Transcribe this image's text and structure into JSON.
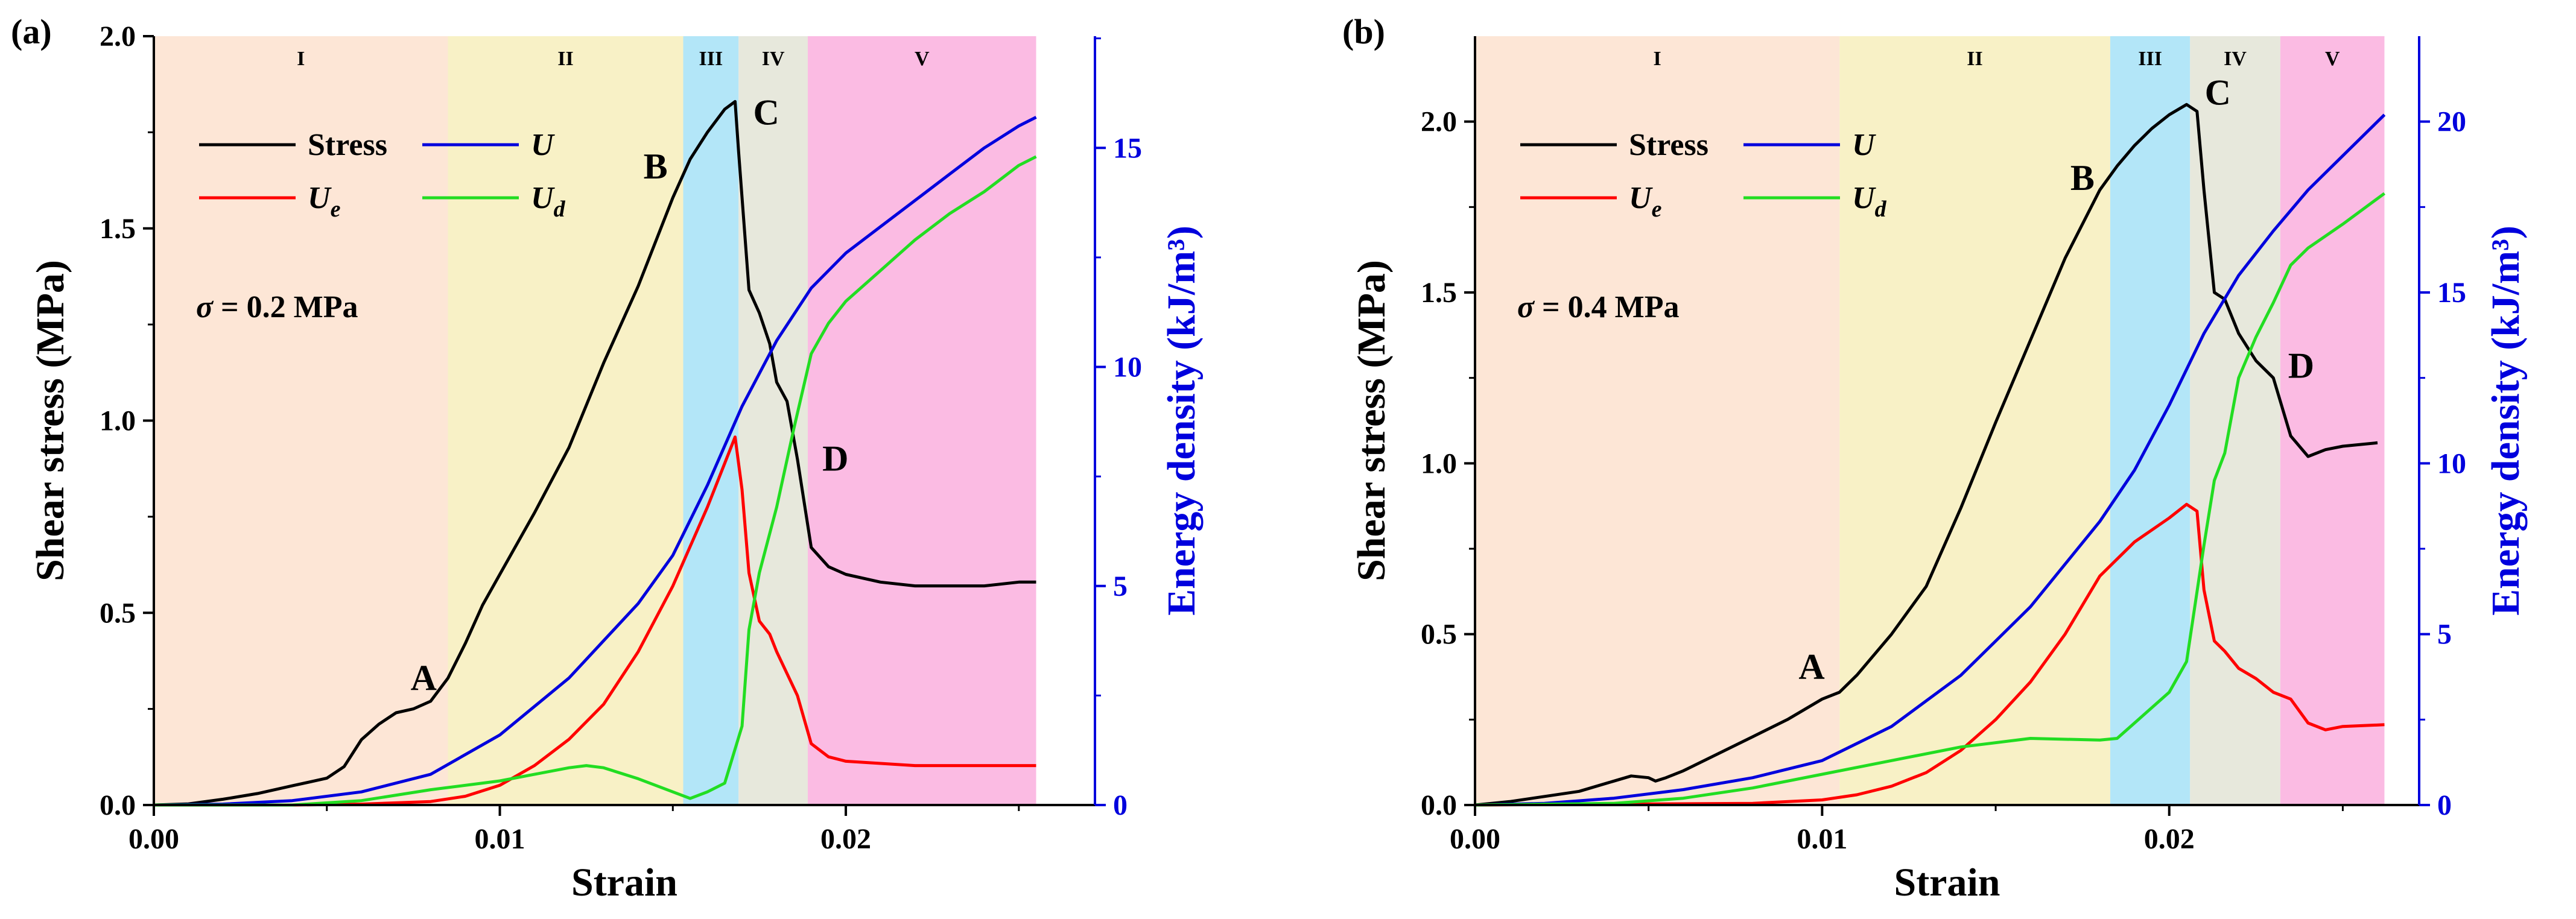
{
  "colors": {
    "stress": "#000000",
    "U": "#0000dd",
    "Ue": "#ff0000",
    "Ud": "#22dd22",
    "right_axis": "#0000dd",
    "stage_I": "#fde6d6",
    "stage_II": "#f8f1c6",
    "stage_III": "#b3e6f8",
    "stage_IV": "#e7e8dc",
    "stage_V": "#fbbbe3"
  },
  "chart_data": [
    {
      "type": "line",
      "panel_label": "(a)",
      "xlabel": "Strain",
      "ylabel": "Shear stress (MPa)",
      "ylabel_right": "Energy density (kJ/m³)",
      "xlim": [
        0,
        0.0272
      ],
      "ylim": [
        0,
        2.0
      ],
      "ylim_right": [
        0,
        17.55
      ],
      "x_ticks": [
        {
          "v": 0,
          "label": "0.00"
        },
        {
          "v": 0.01,
          "label": "0.01"
        },
        {
          "v": 0.02,
          "label": "0.02"
        }
      ],
      "y_ticks": [
        {
          "v": 0,
          "label": "0.0"
        },
        {
          "v": 0.5,
          "label": "0.5"
        },
        {
          "v": 1.0,
          "label": "1.0"
        },
        {
          "v": 1.5,
          "label": "1.5"
        },
        {
          "v": 2.0,
          "label": "2.0"
        }
      ],
      "y_ticks_right": [
        {
          "v": 0,
          "label": "0"
        },
        {
          "v": 5,
          "label": "5"
        },
        {
          "v": 10,
          "label": "10"
        },
        {
          "v": 15,
          "label": "15"
        }
      ],
      "condition": {
        "prefix": "σ",
        "text": "= 0.2 MPa"
      },
      "stages": [
        {
          "label": "I",
          "x0": 0,
          "x1": 0.0085,
          "color": "#fde6d6"
        },
        {
          "label": "II",
          "x0": 0.0085,
          "x1": 0.0153,
          "color": "#f8f1c6"
        },
        {
          "label": "III",
          "x0": 0.0153,
          "x1": 0.0169,
          "color": "#b3e6f8"
        },
        {
          "label": "IV",
          "x0": 0.0169,
          "x1": 0.0189,
          "color": "#e7e8dc"
        },
        {
          "label": "V",
          "x0": 0.0189,
          "x1": 0.0255,
          "color": "#fbbbe3"
        }
      ],
      "legend": [
        {
          "key": "stress",
          "label": "Stress",
          "sub": ""
        },
        {
          "key": "U",
          "label": "U",
          "sub": ""
        },
        {
          "key": "Ue",
          "label": "U",
          "sub": "e"
        },
        {
          "key": "Ud",
          "label": "U",
          "sub": "d"
        }
      ],
      "annotations": [
        {
          "text": "A",
          "x": 0.0078,
          "y": 0.3
        },
        {
          "text": "B",
          "x": 0.0145,
          "y": 1.63
        },
        {
          "text": "C",
          "x": 0.0177,
          "y": 1.77
        },
        {
          "text": "D",
          "x": 0.0197,
          "y": 0.87
        }
      ],
      "series": [
        {
          "name": "Stress",
          "key": "stress",
          "axis": "left",
          "x": [
            0,
            0.001,
            0.002,
            0.003,
            0.004,
            0.005,
            0.0055,
            0.006,
            0.0065,
            0.007,
            0.0075,
            0.008,
            0.0085,
            0.009,
            0.0095,
            0.01,
            0.011,
            0.012,
            0.013,
            0.014,
            0.015,
            0.0155,
            0.016,
            0.0165,
            0.0168,
            0.0169,
            0.0172,
            0.0175,
            0.0178,
            0.018,
            0.0183,
            0.0186,
            0.019,
            0.0195,
            0.02,
            0.021,
            0.022,
            0.023,
            0.024,
            0.025,
            0.0255
          ],
          "values": [
            0,
            0.003,
            0.015,
            0.03,
            0.05,
            0.07,
            0.1,
            0.17,
            0.21,
            0.24,
            0.25,
            0.27,
            0.33,
            0.42,
            0.52,
            0.6,
            0.76,
            0.93,
            1.15,
            1.35,
            1.58,
            1.68,
            1.75,
            1.81,
            1.83,
            1.7,
            1.34,
            1.28,
            1.2,
            1.1,
            1.05,
            0.9,
            0.67,
            0.62,
            0.6,
            0.58,
            0.57,
            0.57,
            0.57,
            0.58,
            0.58
          ]
        },
        {
          "name": "U",
          "key": "U",
          "axis": "right",
          "x": [
            0,
            0.002,
            0.004,
            0.006,
            0.008,
            0.01,
            0.012,
            0.014,
            0.015,
            0.016,
            0.017,
            0.018,
            0.019,
            0.02,
            0.021,
            0.022,
            0.023,
            0.024,
            0.025,
            0.0255
          ],
          "values": [
            0,
            0.02,
            0.1,
            0.3,
            0.7,
            1.6,
            2.9,
            4.6,
            5.7,
            7.3,
            9.1,
            10.6,
            11.8,
            12.6,
            13.2,
            13.8,
            14.4,
            15.0,
            15.5,
            15.7
          ]
        },
        {
          "name": "Ue",
          "key": "Ue",
          "axis": "right",
          "x": [
            0,
            0.004,
            0.006,
            0.008,
            0.009,
            0.01,
            0.011,
            0.012,
            0.013,
            0.014,
            0.015,
            0.016,
            0.0165,
            0.0168,
            0.017,
            0.0172,
            0.0175,
            0.0178,
            0.018,
            0.0183,
            0.0186,
            0.019,
            0.0195,
            0.02,
            0.022,
            0.024,
            0.0255
          ],
          "values": [
            0,
            0,
            0.02,
            0.08,
            0.2,
            0.45,
            0.9,
            1.5,
            2.3,
            3.5,
            5.0,
            6.8,
            7.8,
            8.4,
            7.2,
            5.3,
            4.2,
            3.9,
            3.5,
            3.0,
            2.5,
            1.4,
            1.1,
            1.0,
            0.9,
            0.9,
            0.9
          ]
        },
        {
          "name": "Ud",
          "key": "Ud",
          "axis": "right",
          "x": [
            0,
            0.004,
            0.006,
            0.008,
            0.01,
            0.011,
            0.012,
            0.0125,
            0.013,
            0.014,
            0.015,
            0.0155,
            0.016,
            0.0165,
            0.017,
            0.0172,
            0.0175,
            0.018,
            0.0185,
            0.019,
            0.0195,
            0.02,
            0.021,
            0.022,
            0.023,
            0.024,
            0.025,
            0.0255
          ],
          "values": [
            0,
            0,
            0.1,
            0.35,
            0.55,
            0.7,
            0.85,
            0.9,
            0.85,
            0.6,
            0.3,
            0.15,
            0.3,
            0.5,
            1.8,
            4.0,
            5.3,
            6.8,
            8.6,
            10.3,
            11.0,
            11.5,
            12.2,
            12.9,
            13.5,
            14.0,
            14.6,
            14.8
          ]
        }
      ]
    },
    {
      "type": "line",
      "panel_label": "(b)",
      "xlabel": "Strain",
      "ylabel": "Shear stress (MPa)",
      "ylabel_right": "Energy density (kJ/m³)",
      "xlim": [
        0,
        0.0272
      ],
      "ylim": [
        0,
        2.25
      ],
      "ylim_right": [
        0,
        22.5
      ],
      "x_ticks": [
        {
          "v": 0,
          "label": "0.00"
        },
        {
          "v": 0.01,
          "label": "0.01"
        },
        {
          "v": 0.02,
          "label": "0.02"
        }
      ],
      "y_ticks": [
        {
          "v": 0,
          "label": "0.0"
        },
        {
          "v": 0.5,
          "label": "0.5"
        },
        {
          "v": 1.0,
          "label": "1.0"
        },
        {
          "v": 1.5,
          "label": "1.5"
        },
        {
          "v": 2.0,
          "label": "2.0"
        }
      ],
      "y_ticks_right": [
        {
          "v": 0,
          "label": "0"
        },
        {
          "v": 5,
          "label": "5"
        },
        {
          "v": 10,
          "label": "10"
        },
        {
          "v": 15,
          "label": "15"
        },
        {
          "v": 20,
          "label": "20"
        }
      ],
      "condition": {
        "prefix": "σ",
        "text": "= 0.4 MPa"
      },
      "stages": [
        {
          "label": "I",
          "x0": 0,
          "x1": 0.0105,
          "color": "#fde6d6"
        },
        {
          "label": "II",
          "x0": 0.0105,
          "x1": 0.0183,
          "color": "#f8f1c6"
        },
        {
          "label": "III",
          "x0": 0.0183,
          "x1": 0.0206,
          "color": "#b3e6f8"
        },
        {
          "label": "IV",
          "x0": 0.0206,
          "x1": 0.0232,
          "color": "#e7e8dc"
        },
        {
          "label": "V",
          "x0": 0.0232,
          "x1": 0.0262,
          "color": "#fbbbe3"
        }
      ],
      "legend": [
        {
          "key": "stress",
          "label": "Stress",
          "sub": ""
        },
        {
          "key": "U",
          "label": "U",
          "sub": ""
        },
        {
          "key": "Ue",
          "label": "U",
          "sub": "e"
        },
        {
          "key": "Ud",
          "label": "U",
          "sub": "d"
        }
      ],
      "annotations": [
        {
          "text": "A",
          "x": 0.0097,
          "y": 0.37
        },
        {
          "text": "B",
          "x": 0.0175,
          "y": 1.8
        },
        {
          "text": "C",
          "x": 0.0214,
          "y": 2.05
        },
        {
          "text": "D",
          "x": 0.0238,
          "y": 1.25
        }
      ],
      "series": [
        {
          "name": "Stress",
          "key": "stress",
          "axis": "left",
          "x": [
            0,
            0.001,
            0.002,
            0.003,
            0.004,
            0.0045,
            0.005,
            0.0052,
            0.0055,
            0.006,
            0.007,
            0.008,
            0.009,
            0.01,
            0.0105,
            0.011,
            0.012,
            0.013,
            0.014,
            0.015,
            0.016,
            0.017,
            0.018,
            0.0185,
            0.019,
            0.0195,
            0.02,
            0.0205,
            0.0208,
            0.021,
            0.0213,
            0.0216,
            0.022,
            0.0225,
            0.023,
            0.0235,
            0.024,
            0.0245,
            0.025,
            0.026
          ],
          "values": [
            0,
            0.01,
            0.025,
            0.04,
            0.07,
            0.085,
            0.08,
            0.07,
            0.08,
            0.1,
            0.15,
            0.2,
            0.25,
            0.31,
            0.33,
            0.38,
            0.5,
            0.64,
            0.87,
            1.12,
            1.36,
            1.6,
            1.8,
            1.87,
            1.93,
            1.98,
            2.02,
            2.05,
            2.03,
            1.8,
            1.5,
            1.48,
            1.38,
            1.3,
            1.25,
            1.08,
            1.02,
            1.04,
            1.05,
            1.06
          ]
        },
        {
          "name": "U",
          "key": "U",
          "axis": "right",
          "x": [
            0,
            0.002,
            0.004,
            0.006,
            0.008,
            0.01,
            0.012,
            0.014,
            0.016,
            0.018,
            0.019,
            0.02,
            0.021,
            0.022,
            0.023,
            0.024,
            0.025,
            0.0262
          ],
          "values": [
            0,
            0.05,
            0.2,
            0.45,
            0.8,
            1.3,
            2.3,
            3.8,
            5.8,
            8.3,
            9.8,
            11.7,
            13.8,
            15.5,
            16.8,
            18.0,
            19.0,
            20.2
          ]
        },
        {
          "name": "Ue",
          "key": "Ue",
          "axis": "right",
          "x": [
            0,
            0.008,
            0.01,
            0.011,
            0.012,
            0.013,
            0.014,
            0.015,
            0.016,
            0.017,
            0.018,
            0.019,
            0.02,
            0.0205,
            0.0208,
            0.021,
            0.0213,
            0.0216,
            0.022,
            0.0225,
            0.023,
            0.0235,
            0.024,
            0.0245,
            0.025,
            0.0262
          ],
          "values": [
            0,
            0.05,
            0.15,
            0.3,
            0.55,
            0.95,
            1.6,
            2.5,
            3.6,
            5.0,
            6.7,
            7.7,
            8.4,
            8.8,
            8.6,
            6.3,
            4.8,
            4.5,
            4.0,
            3.7,
            3.3,
            3.1,
            2.4,
            2.2,
            2.3,
            2.35
          ]
        },
        {
          "name": "Ud",
          "key": "Ud",
          "axis": "right",
          "x": [
            0,
            0.004,
            0.006,
            0.008,
            0.01,
            0.012,
            0.014,
            0.016,
            0.018,
            0.0185,
            0.019,
            0.02,
            0.0205,
            0.021,
            0.0213,
            0.0216,
            0.022,
            0.0225,
            0.023,
            0.0235,
            0.024,
            0.025,
            0.0262
          ],
          "values": [
            0,
            0.05,
            0.2,
            0.5,
            0.9,
            1.3,
            1.7,
            1.95,
            1.9,
            1.95,
            2.4,
            3.3,
            4.2,
            7.6,
            9.5,
            10.3,
            12.5,
            13.7,
            14.7,
            15.8,
            16.3,
            17.0,
            17.9
          ]
        }
      ]
    }
  ]
}
